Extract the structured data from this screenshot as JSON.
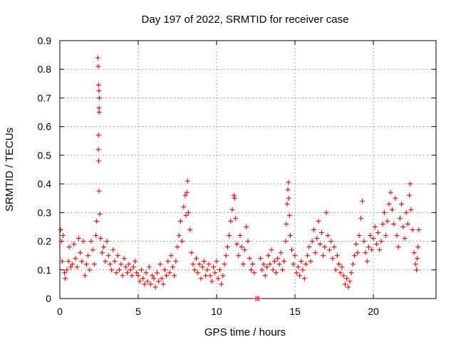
{
  "chart_data": {
    "type": "scatter",
    "title": "Day 197 of 2022, SRMTID for receiver case",
    "xlabel": "GPS time / hours",
    "ylabel": "SRMTID / TECUs",
    "xlim": [
      0,
      24
    ],
    "ylim": [
      0,
      0.9
    ],
    "xticks": [
      0,
      5,
      10,
      15,
      20
    ],
    "yticks": [
      0,
      0.1,
      0.2,
      0.3,
      0.4,
      0.5,
      0.6,
      0.7,
      0.8,
      0.9
    ],
    "xtick_labels": [
      "0",
      "5",
      "10",
      "15",
      "20"
    ],
    "ytick_labels": [
      "0",
      "0.1",
      "0.2",
      "0.3",
      "0.4",
      "0.5",
      "0.6",
      "0.7",
      "0.8",
      "0.9"
    ],
    "grid": true,
    "marker": "plus",
    "color": "#ff0000",
    "series": [
      {
        "name": "SRMTID",
        "points": [
          [
            0.05,
            0.24
          ],
          [
            0.1,
            0.2
          ],
          [
            0.15,
            0.13
          ],
          [
            0.2,
            0.22
          ],
          [
            0.3,
            0.09
          ],
          [
            0.35,
            0.07
          ],
          [
            0.45,
            0.1
          ],
          [
            0.55,
            0.13
          ],
          [
            0.6,
            0.18
          ],
          [
            0.7,
            0.11
          ],
          [
            0.8,
            0.12
          ],
          [
            0.9,
            0.19
          ],
          [
            1.0,
            0.14
          ],
          [
            1.1,
            0.11
          ],
          [
            1.2,
            0.21
          ],
          [
            1.3,
            0.16
          ],
          [
            1.4,
            0.13
          ],
          [
            1.5,
            0.2
          ],
          [
            1.6,
            0.08
          ],
          [
            1.7,
            0.12
          ],
          [
            1.8,
            0.15
          ],
          [
            1.9,
            0.1
          ],
          [
            2.0,
            0.2
          ],
          [
            2.1,
            0.17
          ],
          [
            2.2,
            0.12
          ],
          [
            2.3,
            0.22
          ],
          [
            2.35,
            0.27
          ],
          [
            2.43,
            0.84
          ],
          [
            2.45,
            0.81
          ],
          [
            2.47,
            0.745
          ],
          [
            2.49,
            0.725
          ],
          [
            2.5,
            0.665
          ],
          [
            2.51,
            0.65
          ],
          [
            2.52,
            0.7
          ],
          [
            2.47,
            0.57
          ],
          [
            2.46,
            0.52
          ],
          [
            2.48,
            0.48
          ],
          [
            2.5,
            0.375
          ],
          [
            2.55,
            0.295
          ],
          [
            2.6,
            0.21
          ],
          [
            2.7,
            0.16
          ],
          [
            2.8,
            0.18
          ],
          [
            2.9,
            0.13
          ],
          [
            3.0,
            0.2
          ],
          [
            3.1,
            0.15
          ],
          [
            3.2,
            0.12
          ],
          [
            3.3,
            0.1
          ],
          [
            3.4,
            0.17
          ],
          [
            3.5,
            0.13
          ],
          [
            3.6,
            0.09
          ],
          [
            3.7,
            0.15
          ],
          [
            3.8,
            0.1
          ],
          [
            3.9,
            0.12
          ],
          [
            4.0,
            0.08
          ],
          [
            4.1,
            0.14
          ],
          [
            4.2,
            0.11
          ],
          [
            4.3,
            0.09
          ],
          [
            4.4,
            0.12
          ],
          [
            4.5,
            0.1
          ],
          [
            4.6,
            0.08
          ],
          [
            4.7,
            0.11
          ],
          [
            4.8,
            0.13
          ],
          [
            4.9,
            0.09
          ],
          [
            5.0,
            0.08
          ],
          [
            5.1,
            0.06
          ],
          [
            5.2,
            0.1
          ],
          [
            5.3,
            0.07
          ],
          [
            5.4,
            0.05
          ],
          [
            5.5,
            0.09
          ],
          [
            5.6,
            0.06
          ],
          [
            5.7,
            0.11
          ],
          [
            5.8,
            0.05
          ],
          [
            5.9,
            0.08
          ],
          [
            6.0,
            0.07
          ],
          [
            6.1,
            0.04
          ],
          [
            6.2,
            0.09
          ],
          [
            6.3,
            0.06
          ],
          [
            6.4,
            0.12
          ],
          [
            6.5,
            0.07
          ],
          [
            6.6,
            0.05
          ],
          [
            6.7,
            0.1
          ],
          [
            6.8,
            0.08
          ],
          [
            6.9,
            0.13
          ],
          [
            7.0,
            0.09
          ],
          [
            7.1,
            0.15
          ],
          [
            7.2,
            0.11
          ],
          [
            7.3,
            0.08
          ],
          [
            7.4,
            0.13
          ],
          [
            7.5,
            0.18
          ],
          [
            7.6,
            0.22
          ],
          [
            7.7,
            0.27
          ],
          [
            7.8,
            0.2
          ],
          [
            7.9,
            0.32
          ],
          [
            8.0,
            0.36
          ],
          [
            8.05,
            0.29
          ],
          [
            8.1,
            0.37
          ],
          [
            8.15,
            0.41
          ],
          [
            8.2,
            0.3
          ],
          [
            8.3,
            0.24
          ],
          [
            8.4,
            0.16
          ],
          [
            8.5,
            0.12
          ],
          [
            8.6,
            0.1
          ],
          [
            8.7,
            0.14
          ],
          [
            8.8,
            0.09
          ],
          [
            8.9,
            0.12
          ],
          [
            9.0,
            0.07
          ],
          [
            9.1,
            0.11
          ],
          [
            9.2,
            0.13
          ],
          [
            9.3,
            0.08
          ],
          [
            9.4,
            0.1
          ],
          [
            9.5,
            0.12
          ],
          [
            9.6,
            0.08
          ],
          [
            9.7,
            0.06
          ],
          [
            9.8,
            0.11
          ],
          [
            9.9,
            0.09
          ],
          [
            10.0,
            0.13
          ],
          [
            10.1,
            0.07
          ],
          [
            10.2,
            0.1
          ],
          [
            10.3,
            0.05
          ],
          [
            10.4,
            0.08
          ],
          [
            10.5,
            0.12
          ],
          [
            10.6,
            0.15
          ],
          [
            10.7,
            0.18
          ],
          [
            10.8,
            0.22
          ],
          [
            10.9,
            0.27
          ],
          [
            11.0,
            0.31
          ],
          [
            11.1,
            0.36
          ],
          [
            11.15,
            0.35
          ],
          [
            11.2,
            0.28
          ],
          [
            11.3,
            0.19
          ],
          [
            11.4,
            0.15
          ],
          [
            11.5,
            0.22
          ],
          [
            11.6,
            0.18
          ],
          [
            11.7,
            0.12
          ],
          [
            11.8,
            0.17
          ],
          [
            11.9,
            0.25
          ],
          [
            12.0,
            0.2
          ],
          [
            12.1,
            0.14
          ],
          [
            12.2,
            0.1
          ],
          [
            12.3,
            0.12
          ],
          [
            12.4,
            0.09
          ],
          [
            12.5,
            0.0
          ],
          [
            12.6,
            0.0
          ],
          [
            12.7,
            0.0
          ],
          [
            12.8,
            0.14
          ],
          [
            12.9,
            0.1
          ],
          [
            13.0,
            0.12
          ],
          [
            13.1,
            0.08
          ],
          [
            13.2,
            0.11
          ],
          [
            13.3,
            0.15
          ],
          [
            13.4,
            0.12
          ],
          [
            13.5,
            0.17
          ],
          [
            13.6,
            0.1
          ],
          [
            13.7,
            0.13
          ],
          [
            13.8,
            0.09
          ],
          [
            13.9,
            0.14
          ],
          [
            14.0,
            0.12
          ],
          [
            14.1,
            0.16
          ],
          [
            14.2,
            0.1
          ],
          [
            14.3,
            0.13
          ],
          [
            14.4,
            0.2
          ],
          [
            14.45,
            0.26
          ],
          [
            14.5,
            0.33
          ],
          [
            14.55,
            0.38
          ],
          [
            14.58,
            0.405
          ],
          [
            14.6,
            0.35
          ],
          [
            14.65,
            0.29
          ],
          [
            14.7,
            0.22
          ],
          [
            14.8,
            0.17
          ],
          [
            14.9,
            0.12
          ],
          [
            15.0,
            0.15
          ],
          [
            15.1,
            0.09
          ],
          [
            15.2,
            0.11
          ],
          [
            15.3,
            0.08
          ],
          [
            15.4,
            0.13
          ],
          [
            15.5,
            0.1
          ],
          [
            15.6,
            0.07
          ],
          [
            15.7,
            0.12
          ],
          [
            15.8,
            0.15
          ],
          [
            15.9,
            0.18
          ],
          [
            16.0,
            0.13
          ],
          [
            16.1,
            0.2
          ],
          [
            16.2,
            0.24
          ],
          [
            16.3,
            0.16
          ],
          [
            16.4,
            0.21
          ],
          [
            16.5,
            0.27
          ],
          [
            16.6,
            0.19
          ],
          [
            16.7,
            0.23
          ],
          [
            16.8,
            0.15
          ],
          [
            16.9,
            0.18
          ],
          [
            17.0,
            0.3
          ],
          [
            17.1,
            0.22
          ],
          [
            17.2,
            0.17
          ],
          [
            17.3,
            0.2
          ],
          [
            17.4,
            0.14
          ],
          [
            17.5,
            0.18
          ],
          [
            17.6,
            0.1
          ],
          [
            17.7,
            0.15
          ],
          [
            17.8,
            0.12
          ],
          [
            17.9,
            0.09
          ],
          [
            18.0,
            0.11
          ],
          [
            18.1,
            0.08
          ],
          [
            18.2,
            0.05
          ],
          [
            18.3,
            0.07
          ],
          [
            18.4,
            0.04
          ],
          [
            18.5,
            0.06
          ],
          [
            18.6,
            0.09
          ],
          [
            18.7,
            0.12
          ],
          [
            18.8,
            0.15
          ],
          [
            18.9,
            0.19
          ],
          [
            19.0,
            0.16
          ],
          [
            19.1,
            0.22
          ],
          [
            19.2,
            0.28
          ],
          [
            19.3,
            0.34
          ],
          [
            19.4,
            0.2
          ],
          [
            19.5,
            0.16
          ],
          [
            19.6,
            0.13
          ],
          [
            19.7,
            0.18
          ],
          [
            19.8,
            0.22
          ],
          [
            19.9,
            0.17
          ],
          [
            20.0,
            0.21
          ],
          [
            20.1,
            0.25
          ],
          [
            20.2,
            0.19
          ],
          [
            20.3,
            0.23
          ],
          [
            20.4,
            0.17
          ],
          [
            20.5,
            0.2
          ],
          [
            20.6,
            0.26
          ],
          [
            20.7,
            0.3
          ],
          [
            20.8,
            0.22
          ],
          [
            20.9,
            0.27
          ],
          [
            21.0,
            0.33
          ],
          [
            21.1,
            0.37
          ],
          [
            21.2,
            0.31
          ],
          [
            21.3,
            0.26
          ],
          [
            21.4,
            0.35
          ],
          [
            21.5,
            0.22
          ],
          [
            21.6,
            0.18
          ],
          [
            21.7,
            0.28
          ],
          [
            21.8,
            0.33
          ],
          [
            21.9,
            0.25
          ],
          [
            22.0,
            0.21
          ],
          [
            22.1,
            0.3
          ],
          [
            22.2,
            0.26
          ],
          [
            22.3,
            0.36
          ],
          [
            22.35,
            0.4
          ],
          [
            22.4,
            0.31
          ],
          [
            22.5,
            0.24
          ],
          [
            22.6,
            0.16
          ],
          [
            22.7,
            0.12
          ],
          [
            22.75,
            0.1
          ],
          [
            22.8,
            0.14
          ],
          [
            22.85,
            0.18
          ],
          [
            22.9,
            0.24
          ]
        ]
      }
    ]
  }
}
